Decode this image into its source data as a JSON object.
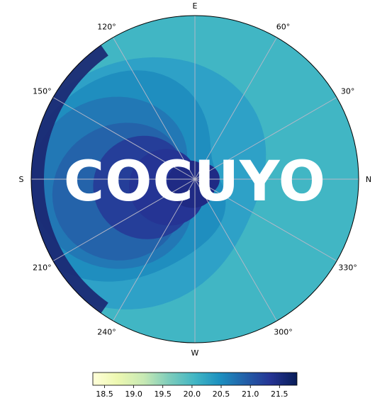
{
  "chart_data": {
    "type": "heatmap",
    "projection": "polar",
    "title": "",
    "watermark": "COCUYO",
    "direction_labels": {
      "north": "N",
      "east": "E",
      "south": "S",
      "west": "W"
    },
    "angle_labels": [
      "30°",
      "60°",
      "120°",
      "150°",
      "210°",
      "240°",
      "300°",
      "330°"
    ],
    "grid": true,
    "colormap": "YlGnBu",
    "colorbar": {
      "orientation": "horizontal",
      "placement": "bottom",
      "range": [
        18.3,
        21.8
      ],
      "ticks": [
        "18.5",
        "19.0",
        "19.5",
        "20.0",
        "20.5",
        "21.0",
        "21.5"
      ]
    },
    "contour_levels": [
      {
        "value": 20.1,
        "color": "#41b6c4"
      },
      {
        "value": 20.3,
        "color": "#2ea1c7"
      },
      {
        "value": 20.5,
        "color": "#1f8ebf"
      },
      {
        "value": 20.8,
        "color": "#2278b5"
      },
      {
        "value": 21.0,
        "color": "#2463aa"
      },
      {
        "value": 21.2,
        "color": "#253e99"
      },
      {
        "value": 21.4,
        "color": "#253494"
      },
      {
        "value": 21.6,
        "color": "#1f2a84"
      },
      {
        "value": 21.8,
        "color": "#1b2570"
      }
    ],
    "colors": {
      "grid": "#b8b8c8",
      "frame": "#000000",
      "background": "#ffffff"
    }
  }
}
